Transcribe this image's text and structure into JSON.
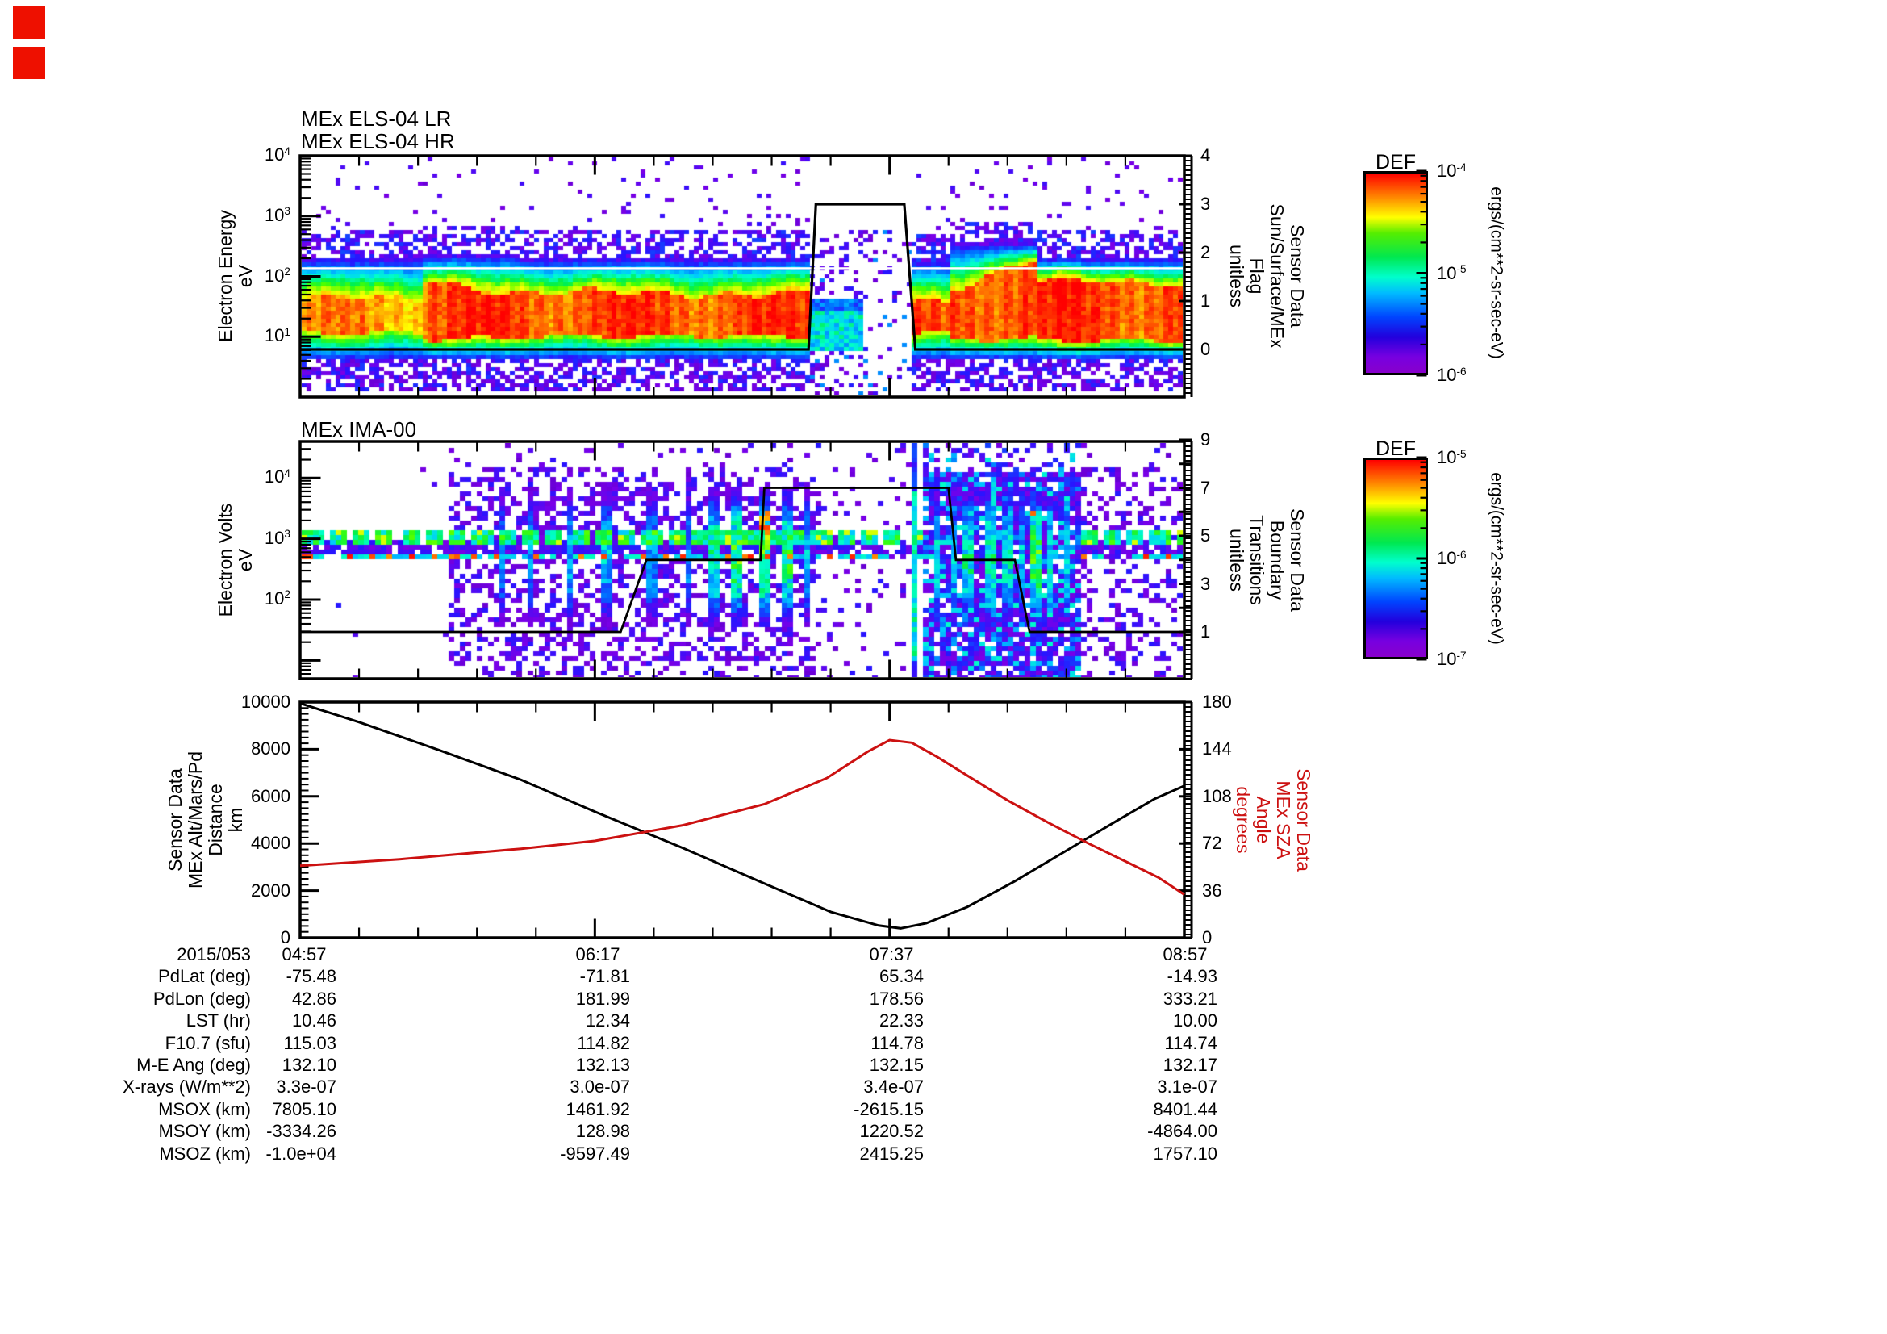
{
  "page": {
    "background": "#ffffff",
    "accent_red": "#cc1111",
    "marker_red": "#ee1000"
  },
  "markers": {
    "top_square": "red-indicator",
    "bottom_square": "red-indicator"
  },
  "panel1": {
    "titles": [
      "MEx ELS-04 LR",
      "MEx ELS-04 HR"
    ],
    "ylabel_lines": [
      "Electron Energy",
      "eV"
    ],
    "ytick_exps": [
      "4",
      "3",
      "2",
      "1"
    ],
    "right_axis": {
      "labels": [
        "4",
        "3",
        "2",
        "1",
        "0"
      ],
      "label_lines": [
        "Sensor Data",
        "Sun/Surface/MEx",
        "Flag",
        "unitless"
      ]
    },
    "colorbar": {
      "title": "DEF",
      "tick_exps": [
        "-4",
        "-5",
        "-6"
      ],
      "units": "ergs/(cm**2-sr-sec-eV)"
    }
  },
  "panel2": {
    "title": "MEx IMA-00",
    "ylabel_lines": [
      "Electron Volts",
      "eV"
    ],
    "ytick_exps": [
      "4",
      "3",
      "2"
    ],
    "right_axis": {
      "labels": [
        "9",
        "7",
        "5",
        "3",
        "1"
      ],
      "label_lines": [
        "Sensor Data",
        "Boundary",
        "Transitions",
        "unitless"
      ]
    },
    "colorbar": {
      "title": "DEF",
      "tick_exps": [
        "-5",
        "-6",
        "-7"
      ],
      "units": "ergs/(cm**2-sr-sec-eV)"
    }
  },
  "panel3": {
    "left_axis": {
      "labels": [
        "10000",
        "8000",
        "6000",
        "4000",
        "2000",
        "0"
      ]
    },
    "right_axis": {
      "labels": [
        "180",
        "144",
        "108",
        "72",
        "36",
        "0"
      ]
    },
    "left_label_lines": [
      "Sensor Data",
      "MEx Alt/Mars/Pd",
      "Distance",
      "km"
    ],
    "right_label_lines": [
      "Sensor Data",
      "MEx SZA",
      "Angle",
      "degrees"
    ],
    "date_label": "2015/053",
    "time_labels": [
      "04:57",
      "06:17",
      "07:37",
      "08:57"
    ]
  },
  "table": {
    "rows": [
      {
        "label": "PdLat (deg)",
        "values": [
          "-75.48",
          "-71.81",
          "65.34",
          "-14.93"
        ]
      },
      {
        "label": "PdLon (deg)",
        "values": [
          "42.86",
          "181.99",
          "178.56",
          "333.21"
        ]
      },
      {
        "label": "LST (hr)",
        "values": [
          "10.46",
          "12.34",
          "22.33",
          "10.00"
        ]
      },
      {
        "label": "F10.7 (sfu)",
        "values": [
          "115.03",
          "114.82",
          "114.78",
          "114.74"
        ]
      },
      {
        "label": "M-E Ang (deg)",
        "values": [
          "132.10",
          "132.13",
          "132.15",
          "132.17"
        ]
      },
      {
        "label": "X-rays (W/m**2)",
        "values": [
          "3.3e-07",
          "3.0e-07",
          "3.4e-07",
          "3.1e-07"
        ]
      },
      {
        "label": "MSOX (km)",
        "values": [
          "7805.10",
          "1461.92",
          "-2615.15",
          "8401.44"
        ]
      },
      {
        "label": "MSOY (km)",
        "values": [
          "-3334.26",
          "128.98",
          "1220.52",
          "-4864.00"
        ]
      },
      {
        "label": "MSOZ (km)",
        "values": [
          "-1.0e+04",
          "-9597.49",
          "2415.25",
          "1757.10"
        ]
      }
    ]
  },
  "chart_data": [
    {
      "type": "heatmap",
      "title": "MEx ELS-04 LR / MEx ELS-04 HR",
      "x_range": [
        "04:57",
        "08:57"
      ],
      "ylabel": "Electron Energy eV",
      "y_scale": "log",
      "y_range": [
        1,
        10000
      ],
      "colorbar": {
        "label": "DEF",
        "units": "ergs/(cm**2-sr-sec-eV)",
        "range_exp": [
          -6,
          -4
        ]
      },
      "overlay_line": {
        "name": "Sensor Data Sun/Surface/MEx Flag",
        "axis_range": [
          0,
          4
        ],
        "points": [
          [
            "04:57",
            0
          ],
          [
            "07:15",
            0
          ],
          [
            "07:17",
            3
          ],
          [
            "07:41",
            3
          ],
          [
            "07:44",
            0
          ],
          [
            "08:57",
            0
          ]
        ]
      },
      "segments": [
        {
          "t0": 0.0,
          "t1": 0.137,
          "redTop": 1.62,
          "redBot": 1.05,
          "cyanTop": 2.3,
          "speckleTop": 2.8,
          "core": 0.85
        },
        {
          "t0": 0.137,
          "t1": 0.245,
          "redTop": 1.95,
          "redTop1": 1.72,
          "redBot": 0.95,
          "cyanTop": 2.35,
          "speckleTop": 2.85,
          "core": 0.94
        },
        {
          "t0": 0.245,
          "t1": 0.575,
          "redTop": 1.72,
          "redBot": 1.0,
          "cyanTop": 2.3,
          "speckleTop": 2.8,
          "core": 0.93
        },
        {
          "t0": 0.575,
          "t1": 0.635,
          "sparse": 0.5,
          "lowBand": true
        },
        {
          "t0": 0.635,
          "t1": 0.693,
          "sparse": 0.18
        },
        {
          "t0": 0.693,
          "t1": 0.736,
          "redTop": 1.6,
          "redBot": 1.05,
          "cyanTop": 2.25,
          "speckleTop": 2.7,
          "core": 0.9
        },
        {
          "t0": 0.736,
          "t1": 0.837,
          "redTop": 1.8,
          "redTop1": 2.3,
          "redBot": 0.95,
          "cyanTop": 2.55,
          "speckleTop": 2.9,
          "core": 0.94
        },
        {
          "t0": 0.837,
          "t1": 1.001,
          "redTop": 1.9,
          "redBot": 0.92,
          "cyanTop": 2.3,
          "speckleTop": 2.8,
          "core": 0.94
        }
      ]
    },
    {
      "type": "heatmap",
      "title": "MEx IMA-00",
      "x_range": [
        "04:57",
        "08:57"
      ],
      "ylabel": "Electron Volts eV",
      "y_scale": "log",
      "y_range_exp": [
        0.7,
        4.6
      ],
      "colorbar": {
        "label": "DEF",
        "units": "ergs/(cm**2-sr-sec-eV)",
        "range_exp": [
          -7,
          -5
        ]
      },
      "overlay_line": {
        "name": "Sensor Data Boundary Transitions",
        "axis_range": [
          1,
          9
        ],
        "points": [
          [
            "04:57",
            1
          ],
          [
            "06:24",
            1
          ],
          [
            "06:31",
            4
          ],
          [
            "07:02",
            4
          ],
          [
            "07:03",
            7
          ],
          [
            "07:53",
            7
          ],
          [
            "07:55",
            4
          ],
          [
            "08:11",
            4
          ],
          [
            "08:15",
            1
          ],
          [
            "08:57",
            1
          ]
        ]
      },
      "bands": [
        {
          "logE": 3.02,
          "halfWidth": 0.09,
          "style": "multicolor-dotted"
        },
        {
          "logE": 2.86,
          "halfWidth": 0.09,
          "style": "purple"
        },
        {
          "logE": 2.7,
          "halfWidth": 0.07,
          "style": "cyan-with-hot-dots"
        }
      ],
      "regions": [
        {
          "t0": 0.0,
          "t1": 0.169,
          "density": 0.012
        },
        {
          "t0": 0.169,
          "t1": 0.59,
          "density": 0.42
        },
        {
          "t0": 0.59,
          "t1": 0.693,
          "density": 0.1
        },
        {
          "t0": 0.693,
          "t1": 0.699,
          "style": "cyan-column"
        },
        {
          "t0": 0.699,
          "t1": 0.707,
          "density": 0
        },
        {
          "t0": 0.707,
          "t1": 0.883,
          "style": "dense"
        },
        {
          "t0": 0.883,
          "t1": 1.001,
          "density": 0.3
        }
      ],
      "streaks": [
        {
          "x": 248,
          "w": 8,
          "s": 0.5
        },
        {
          "x": 283,
          "w": 8,
          "s": 0.5
        },
        {
          "x": 333,
          "w": 12,
          "s": 0.6
        },
        {
          "x": 378,
          "w": 12,
          "s": 0.6
        },
        {
          "x": 433,
          "w": 12,
          "s": 0.55
        },
        {
          "x": 480,
          "w": 10,
          "s": 0.5
        },
        {
          "x": 513,
          "w": 12,
          "s": 0.8
        },
        {
          "x": 540,
          "w": 18,
          "s": 0.9
        },
        {
          "x": 576,
          "w": 14,
          "s": 0.95,
          "hot": true
        },
        {
          "x": 600,
          "w": 12,
          "s": 0.85
        },
        {
          "x": 628,
          "w": 10,
          "s": 0.6
        },
        {
          "x": 788,
          "w": 10,
          "s": 0.7
        },
        {
          "x": 806,
          "w": 8,
          "s": 0.6
        },
        {
          "x": 828,
          "w": 12,
          "s": 0.75
        },
        {
          "x": 853,
          "w": 14,
          "s": 0.8
        },
        {
          "x": 875,
          "w": 10,
          "s": 0.7
        },
        {
          "x": 890,
          "w": 8,
          "s": 0.6
        },
        {
          "x": 913,
          "w": 14,
          "s": 0.9,
          "hot": true
        },
        {
          "x": 928,
          "w": 10,
          "s": 0.7
        },
        {
          "x": 946,
          "w": 8,
          "s": 0.6
        }
      ]
    },
    {
      "type": "line",
      "xlabel_date": "2015/053",
      "x_ticks": [
        "04:57",
        "06:17",
        "07:37",
        "08:57"
      ],
      "series": [
        {
          "name": "Sensor Data MEx Alt/Mars/Pd Distance km",
          "color": "#000000",
          "axis": "left",
          "ylim": [
            0,
            10000
          ],
          "points": [
            [
              "04:57",
              9950
            ],
            [
              "05:13",
              9150
            ],
            [
              "05:35",
              7950
            ],
            [
              "05:57",
              6700
            ],
            [
              "06:17",
              5350
            ],
            [
              "06:41",
              3800
            ],
            [
              "07:03",
              2300
            ],
            [
              "07:21",
              1100
            ],
            [
              "07:34",
              520
            ],
            [
              "07:40",
              400
            ],
            [
              "07:47",
              620
            ],
            [
              "07:58",
              1300
            ],
            [
              "08:11",
              2400
            ],
            [
              "08:25",
              3700
            ],
            [
              "08:38",
              4900
            ],
            [
              "08:49",
              5900
            ],
            [
              "08:57",
              6450
            ]
          ]
        },
        {
          "name": "Sensor Data MEx SZA Angle degrees",
          "color": "#cc1111",
          "axis": "right",
          "ylim": [
            0,
            180
          ],
          "points": [
            [
              "04:57",
              55
            ],
            [
              "05:24",
              60
            ],
            [
              "05:57",
              68
            ],
            [
              "06:17",
              74
            ],
            [
              "06:41",
              86
            ],
            [
              "07:03",
              102
            ],
            [
              "07:20",
              122
            ],
            [
              "07:31",
              142
            ],
            [
              "07:37",
              151
            ],
            [
              "07:43",
              149
            ],
            [
              "07:50",
              138
            ],
            [
              "07:58",
              124
            ],
            [
              "08:09",
              105
            ],
            [
              "08:20",
              88
            ],
            [
              "08:31",
              72
            ],
            [
              "08:42",
              57
            ],
            [
              "08:50",
              46
            ],
            [
              "08:57",
              33
            ]
          ]
        }
      ]
    }
  ]
}
